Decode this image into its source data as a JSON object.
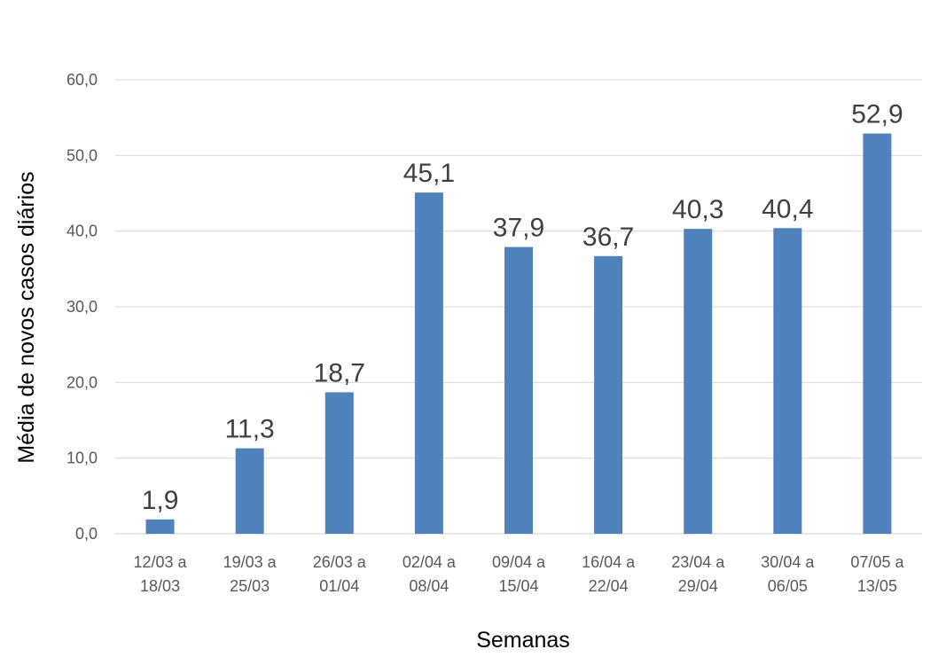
{
  "chart_data": {
    "type": "bar",
    "title": "",
    "xlabel": "Semanas",
    "ylabel": "Média de novos casos diários",
    "ylim": [
      0,
      60
    ],
    "yticks": [
      "0,0",
      "10,0",
      "20,0",
      "30,0",
      "40,0",
      "50,0",
      "60,0"
    ],
    "ytick_values": [
      0,
      10,
      20,
      30,
      40,
      50,
      60
    ],
    "grid": true,
    "legend": "none",
    "bar_color": "#4f81bd",
    "categories": [
      [
        "12/03 a",
        "18/03"
      ],
      [
        "19/03 a",
        "25/03"
      ],
      [
        "26/03 a",
        "01/04"
      ],
      [
        "02/04 a",
        "08/04"
      ],
      [
        "09/04 a",
        "15/04"
      ],
      [
        "16/04 a",
        "22/04"
      ],
      [
        "23/04 a",
        "29/04"
      ],
      [
        "30/04 a",
        "06/05"
      ],
      [
        "07/05 a",
        "13/05"
      ]
    ],
    "values": [
      1.9,
      11.3,
      18.7,
      45.1,
      37.9,
      36.7,
      40.3,
      40.4,
      52.9
    ],
    "value_labels": [
      "1,9",
      "11,3",
      "18,7",
      "45,1",
      "37,9",
      "36,7",
      "40,3",
      "40,4",
      "52,9"
    ]
  }
}
